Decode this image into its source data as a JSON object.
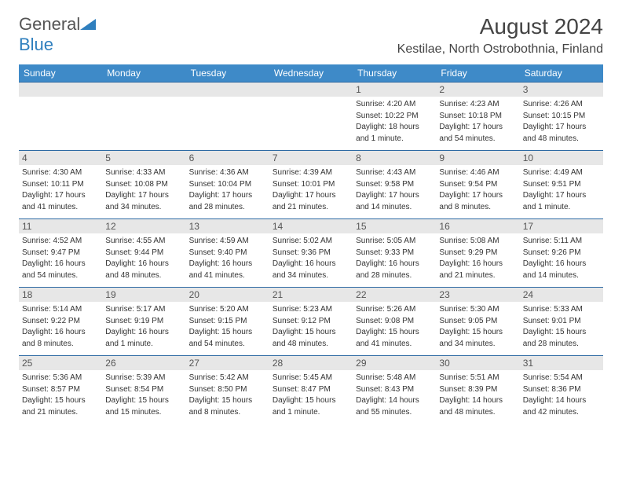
{
  "logo": {
    "textGray": "General",
    "textBlue": "Blue"
  },
  "title": "August 2024",
  "location": "Kestilae, North Ostrobothnia, Finland",
  "colors": {
    "headerBg": "#3e8ac8",
    "rowBorder": "#2d6aa3",
    "dayNumBg": "#e7e7e7"
  },
  "weekdays": [
    "Sunday",
    "Monday",
    "Tuesday",
    "Wednesday",
    "Thursday",
    "Friday",
    "Saturday"
  ],
  "weeks": [
    [
      {
        "num": "",
        "lines": []
      },
      {
        "num": "",
        "lines": []
      },
      {
        "num": "",
        "lines": []
      },
      {
        "num": "",
        "lines": []
      },
      {
        "num": "1",
        "lines": [
          "Sunrise: 4:20 AM",
          "Sunset: 10:22 PM",
          "Daylight: 18 hours",
          "and 1 minute."
        ]
      },
      {
        "num": "2",
        "lines": [
          "Sunrise: 4:23 AM",
          "Sunset: 10:18 PM",
          "Daylight: 17 hours",
          "and 54 minutes."
        ]
      },
      {
        "num": "3",
        "lines": [
          "Sunrise: 4:26 AM",
          "Sunset: 10:15 PM",
          "Daylight: 17 hours",
          "and 48 minutes."
        ]
      }
    ],
    [
      {
        "num": "4",
        "lines": [
          "Sunrise: 4:30 AM",
          "Sunset: 10:11 PM",
          "Daylight: 17 hours",
          "and 41 minutes."
        ]
      },
      {
        "num": "5",
        "lines": [
          "Sunrise: 4:33 AM",
          "Sunset: 10:08 PM",
          "Daylight: 17 hours",
          "and 34 minutes."
        ]
      },
      {
        "num": "6",
        "lines": [
          "Sunrise: 4:36 AM",
          "Sunset: 10:04 PM",
          "Daylight: 17 hours",
          "and 28 minutes."
        ]
      },
      {
        "num": "7",
        "lines": [
          "Sunrise: 4:39 AM",
          "Sunset: 10:01 PM",
          "Daylight: 17 hours",
          "and 21 minutes."
        ]
      },
      {
        "num": "8",
        "lines": [
          "Sunrise: 4:43 AM",
          "Sunset: 9:58 PM",
          "Daylight: 17 hours",
          "and 14 minutes."
        ]
      },
      {
        "num": "9",
        "lines": [
          "Sunrise: 4:46 AM",
          "Sunset: 9:54 PM",
          "Daylight: 17 hours",
          "and 8 minutes."
        ]
      },
      {
        "num": "10",
        "lines": [
          "Sunrise: 4:49 AM",
          "Sunset: 9:51 PM",
          "Daylight: 17 hours",
          "and 1 minute."
        ]
      }
    ],
    [
      {
        "num": "11",
        "lines": [
          "Sunrise: 4:52 AM",
          "Sunset: 9:47 PM",
          "Daylight: 16 hours",
          "and 54 minutes."
        ]
      },
      {
        "num": "12",
        "lines": [
          "Sunrise: 4:55 AM",
          "Sunset: 9:44 PM",
          "Daylight: 16 hours",
          "and 48 minutes."
        ]
      },
      {
        "num": "13",
        "lines": [
          "Sunrise: 4:59 AM",
          "Sunset: 9:40 PM",
          "Daylight: 16 hours",
          "and 41 minutes."
        ]
      },
      {
        "num": "14",
        "lines": [
          "Sunrise: 5:02 AM",
          "Sunset: 9:36 PM",
          "Daylight: 16 hours",
          "and 34 minutes."
        ]
      },
      {
        "num": "15",
        "lines": [
          "Sunrise: 5:05 AM",
          "Sunset: 9:33 PM",
          "Daylight: 16 hours",
          "and 28 minutes."
        ]
      },
      {
        "num": "16",
        "lines": [
          "Sunrise: 5:08 AM",
          "Sunset: 9:29 PM",
          "Daylight: 16 hours",
          "and 21 minutes."
        ]
      },
      {
        "num": "17",
        "lines": [
          "Sunrise: 5:11 AM",
          "Sunset: 9:26 PM",
          "Daylight: 16 hours",
          "and 14 minutes."
        ]
      }
    ],
    [
      {
        "num": "18",
        "lines": [
          "Sunrise: 5:14 AM",
          "Sunset: 9:22 PM",
          "Daylight: 16 hours",
          "and 8 minutes."
        ]
      },
      {
        "num": "19",
        "lines": [
          "Sunrise: 5:17 AM",
          "Sunset: 9:19 PM",
          "Daylight: 16 hours",
          "and 1 minute."
        ]
      },
      {
        "num": "20",
        "lines": [
          "Sunrise: 5:20 AM",
          "Sunset: 9:15 PM",
          "Daylight: 15 hours",
          "and 54 minutes."
        ]
      },
      {
        "num": "21",
        "lines": [
          "Sunrise: 5:23 AM",
          "Sunset: 9:12 PM",
          "Daylight: 15 hours",
          "and 48 minutes."
        ]
      },
      {
        "num": "22",
        "lines": [
          "Sunrise: 5:26 AM",
          "Sunset: 9:08 PM",
          "Daylight: 15 hours",
          "and 41 minutes."
        ]
      },
      {
        "num": "23",
        "lines": [
          "Sunrise: 5:30 AM",
          "Sunset: 9:05 PM",
          "Daylight: 15 hours",
          "and 34 minutes."
        ]
      },
      {
        "num": "24",
        "lines": [
          "Sunrise: 5:33 AM",
          "Sunset: 9:01 PM",
          "Daylight: 15 hours",
          "and 28 minutes."
        ]
      }
    ],
    [
      {
        "num": "25",
        "lines": [
          "Sunrise: 5:36 AM",
          "Sunset: 8:57 PM",
          "Daylight: 15 hours",
          "and 21 minutes."
        ]
      },
      {
        "num": "26",
        "lines": [
          "Sunrise: 5:39 AM",
          "Sunset: 8:54 PM",
          "Daylight: 15 hours",
          "and 15 minutes."
        ]
      },
      {
        "num": "27",
        "lines": [
          "Sunrise: 5:42 AM",
          "Sunset: 8:50 PM",
          "Daylight: 15 hours",
          "and 8 minutes."
        ]
      },
      {
        "num": "28",
        "lines": [
          "Sunrise: 5:45 AM",
          "Sunset: 8:47 PM",
          "Daylight: 15 hours",
          "and 1 minute."
        ]
      },
      {
        "num": "29",
        "lines": [
          "Sunrise: 5:48 AM",
          "Sunset: 8:43 PM",
          "Daylight: 14 hours",
          "and 55 minutes."
        ]
      },
      {
        "num": "30",
        "lines": [
          "Sunrise: 5:51 AM",
          "Sunset: 8:39 PM",
          "Daylight: 14 hours",
          "and 48 minutes."
        ]
      },
      {
        "num": "31",
        "lines": [
          "Sunrise: 5:54 AM",
          "Sunset: 8:36 PM",
          "Daylight: 14 hours",
          "and 42 minutes."
        ]
      }
    ]
  ]
}
